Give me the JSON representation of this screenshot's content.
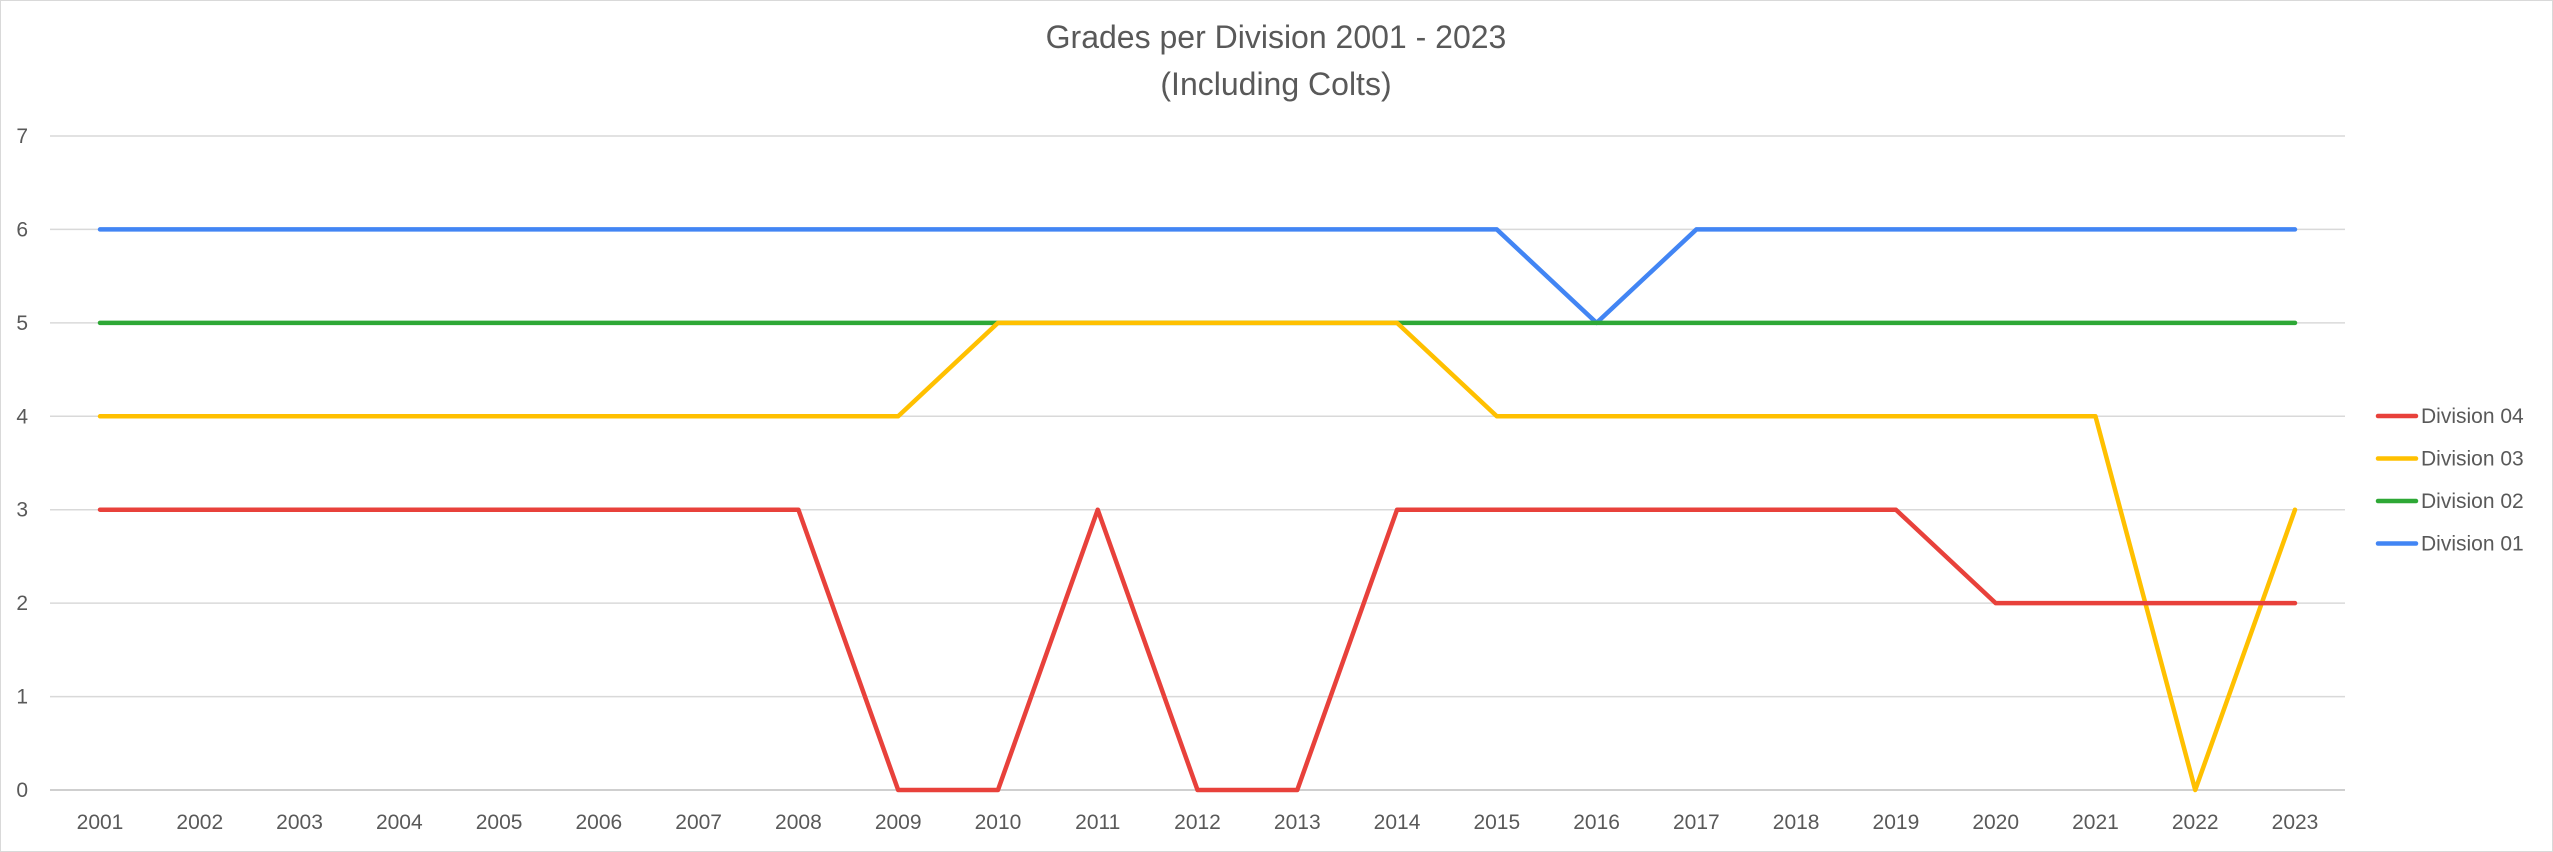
{
  "chart_data": {
    "type": "line",
    "title": "Grades per Division 2001 - 2023",
    "subtitle": "(Including Colts)",
    "xlabel": "",
    "ylabel": "",
    "ylim": [
      0,
      7
    ],
    "yticks": [
      "0",
      "1",
      "2",
      "3",
      "4",
      "5",
      "6",
      "7"
    ],
    "grid": true,
    "legend_position": "right",
    "categories": [
      "2001",
      "2002",
      "2003",
      "2004",
      "2005",
      "2006",
      "2007",
      "2008",
      "2009",
      "2010",
      "2011",
      "2012",
      "2013",
      "2014",
      "2015",
      "2016",
      "2017",
      "2018",
      "2019",
      "2020",
      "2021",
      "2022",
      "2023"
    ],
    "series": [
      {
        "name": "Division 04",
        "color": "#e8413b",
        "values": [
          3,
          3,
          3,
          3,
          3,
          3,
          3,
          3,
          0,
          0,
          3,
          0,
          0,
          3,
          3,
          3,
          3,
          3,
          3,
          2,
          2,
          2,
          2
        ]
      },
      {
        "name": "Division 03",
        "color": "#ffc000",
        "values": [
          4,
          4,
          4,
          4,
          4,
          4,
          4,
          4,
          4,
          5,
          5,
          5,
          5,
          5,
          4,
          4,
          4,
          4,
          4,
          4,
          4,
          0,
          3
        ]
      },
      {
        "name": "Division 02",
        "color": "#2ea836",
        "values": [
          5,
          5,
          5,
          5,
          5,
          5,
          5,
          5,
          5,
          5,
          5,
          5,
          5,
          5,
          5,
          5,
          5,
          5,
          5,
          5,
          5,
          5,
          5
        ]
      },
      {
        "name": "Division 01",
        "color": "#4285f4",
        "values": [
          6,
          6,
          6,
          6,
          6,
          6,
          6,
          6,
          6,
          6,
          6,
          6,
          6,
          6,
          6,
          5,
          6,
          6,
          6,
          6,
          6,
          6,
          6
        ]
      }
    ]
  },
  "colors": {
    "gridline": "#d9d9d9",
    "text": "#595959",
    "axis": "#bfbfbf"
  }
}
